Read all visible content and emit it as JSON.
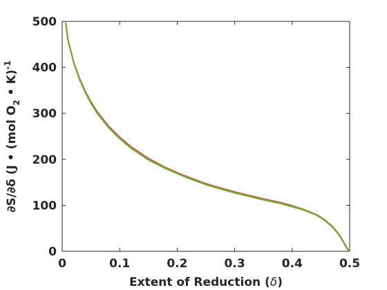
{
  "chart_data": {
    "type": "line",
    "title": "",
    "xlabel": "Extent of Reduction (δ)",
    "ylabel": "∂S/∂δ (J • (mol O2 • K)-1)",
    "xlim": [
      0,
      0.5
    ],
    "ylim": [
      0,
      500
    ],
    "x_ticks": [
      0,
      0.1,
      0.2,
      0.3,
      0.4,
      0.5
    ],
    "y_ticks": [
      0,
      100,
      200,
      300,
      400,
      500
    ],
    "x_tick_labels": [
      "0",
      "0.1",
      "0.2",
      "0.3",
      "0.4",
      "0.5"
    ],
    "y_tick_labels": [
      "0",
      "100",
      "200",
      "300",
      "400",
      "500"
    ],
    "grid": false,
    "legend": "none",
    "series": [
      {
        "color": "#c4565f",
        "x": [
          0.006,
          0.01,
          0.02,
          0.03,
          0.04,
          0.05,
          0.06,
          0.08,
          0.1,
          0.12,
          0.15,
          0.18,
          0.2,
          0.22,
          0.25,
          0.28,
          0.3,
          0.33,
          0.35,
          0.38,
          0.4,
          0.42,
          0.44,
          0.45,
          0.46,
          0.47,
          0.48,
          0.485,
          0.49,
          0.494,
          0.497,
          0.499
        ],
        "y": [
          497,
          460,
          412,
          376,
          348,
          325,
          305,
          273,
          248,
          227,
          202,
          182,
          171,
          161,
          147,
          136,
          129,
          120,
          114,
          106,
          99,
          91,
          81,
          74,
          65,
          54,
          39,
          30,
          19,
          10,
          4,
          0
        ]
      },
      {
        "color": "#77ac30",
        "x": [
          0.006,
          0.01,
          0.02,
          0.03,
          0.04,
          0.05,
          0.06,
          0.08,
          0.1,
          0.12,
          0.15,
          0.18,
          0.2,
          0.22,
          0.25,
          0.28,
          0.3,
          0.33,
          0.35,
          0.38,
          0.4,
          0.42,
          0.44,
          0.45,
          0.46,
          0.47,
          0.48,
          0.485,
          0.49,
          0.494,
          0.497,
          0.499
        ],
        "y": [
          498,
          461,
          411,
          374,
          346,
          322,
          302,
          270,
          245,
          224,
          199,
          180,
          169,
          159,
          145,
          134,
          127,
          118,
          112,
          104,
          97,
          90,
          80,
          73,
          64,
          53,
          38,
          29,
          18,
          9,
          3,
          0
        ]
      }
    ]
  }
}
